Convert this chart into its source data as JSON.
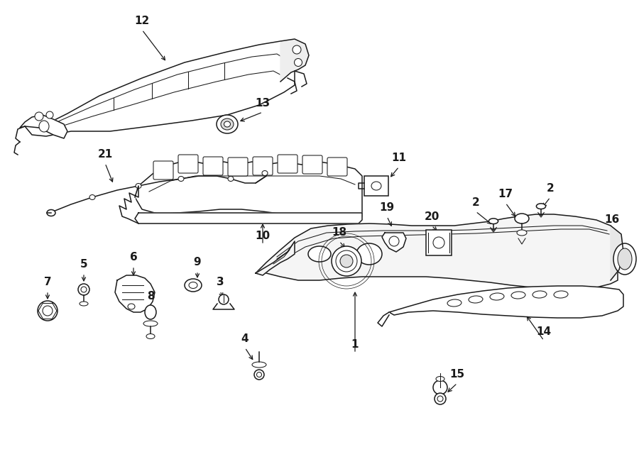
{
  "bg_color": "#ffffff",
  "line_color": "#1a1a1a",
  "fig_width": 9.0,
  "fig_height": 6.61,
  "dpi": 100,
  "label_fontsize": 11
}
